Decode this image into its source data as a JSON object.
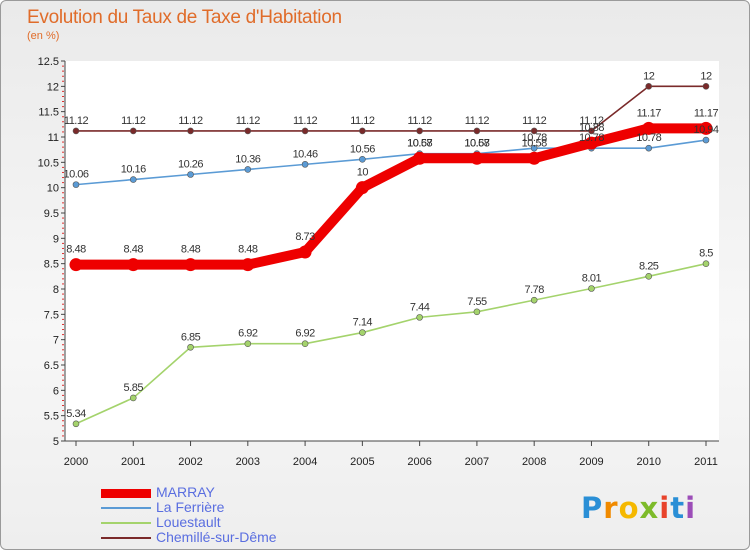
{
  "header": {
    "title": "Evolution du Taux de Taxe d'Habitation",
    "subtitle": "(en %)"
  },
  "chart_data": {
    "type": "line",
    "title": "Evolution du Taux de Taxe d'Habitation",
    "ylabel": "(en %)",
    "xlabel": "",
    "x": [
      "2000",
      "2001",
      "2002",
      "2003",
      "2004",
      "2005",
      "2006",
      "2007",
      "2008",
      "2009",
      "2010",
      "2011"
    ],
    "ylim": [
      5,
      12.5
    ],
    "yticks": [
      "5",
      "5.5",
      "6",
      "6.5",
      "7",
      "7.5",
      "8",
      "8.5",
      "9",
      "9.5",
      "10",
      "10.5",
      "11",
      "11.5",
      "12",
      "12.5"
    ],
    "grid": false,
    "legend_position": "bottom-left",
    "series": [
      {
        "name": "MARRAY",
        "color": "#ee0000",
        "values": [
          8.48,
          8.48,
          8.48,
          8.48,
          8.73,
          10,
          10.58,
          10.58,
          10.58,
          10.88,
          11.17,
          11.17
        ],
        "labels": [
          "8.48",
          "8.48",
          "8.48",
          "8.48",
          "8.73",
          "10",
          "10.58",
          "10.58",
          "10.58",
          "10.88",
          "11.17",
          "11.17"
        ]
      },
      {
        "name": "La Ferrière",
        "color": "#5b9bd5",
        "values": [
          10.06,
          10.16,
          10.26,
          10.36,
          10.46,
          10.56,
          10.67,
          10.67,
          10.78,
          10.78,
          10.78,
          10.94
        ],
        "labels": [
          "10.06",
          "10.16",
          "10.26",
          "10.36",
          "10.46",
          "10.56",
          "10.67",
          "10.67",
          "10.78",
          "10.78",
          "10.78",
          "10.94"
        ]
      },
      {
        "name": "Louestault",
        "color": "#a4d36c",
        "values": [
          5.34,
          5.85,
          6.85,
          6.92,
          6.92,
          7.14,
          7.44,
          7.55,
          7.78,
          8.01,
          8.25,
          8.5
        ],
        "labels": [
          "5.34",
          "5.85",
          "6.85",
          "6.92",
          "6.92",
          "7.14",
          "7.44",
          "7.55",
          "7.78",
          "8.01",
          "8.25",
          "8.5"
        ]
      },
      {
        "name": "Chemillé-sur-Dême",
        "color": "#7a2a2a",
        "values": [
          11.12,
          11.12,
          11.12,
          11.12,
          11.12,
          11.12,
          11.12,
          11.12,
          11.12,
          11.12,
          12,
          12
        ],
        "labels": [
          "11.12",
          "11.12",
          "11.12",
          "11.12",
          "11.12",
          "11.12",
          "11.12",
          "11.12",
          "11.12",
          "11.12",
          "12",
          "12"
        ]
      }
    ]
  },
  "logo": {
    "letters": [
      "P",
      "r",
      "o",
      "x",
      "i",
      "t",
      "i"
    ],
    "colors": [
      "#2a8fd6",
      "#f08a00",
      "#f5b800",
      "#7dbb2a",
      "#e8432b",
      "#2a8fd6",
      "#9c4db8"
    ]
  }
}
